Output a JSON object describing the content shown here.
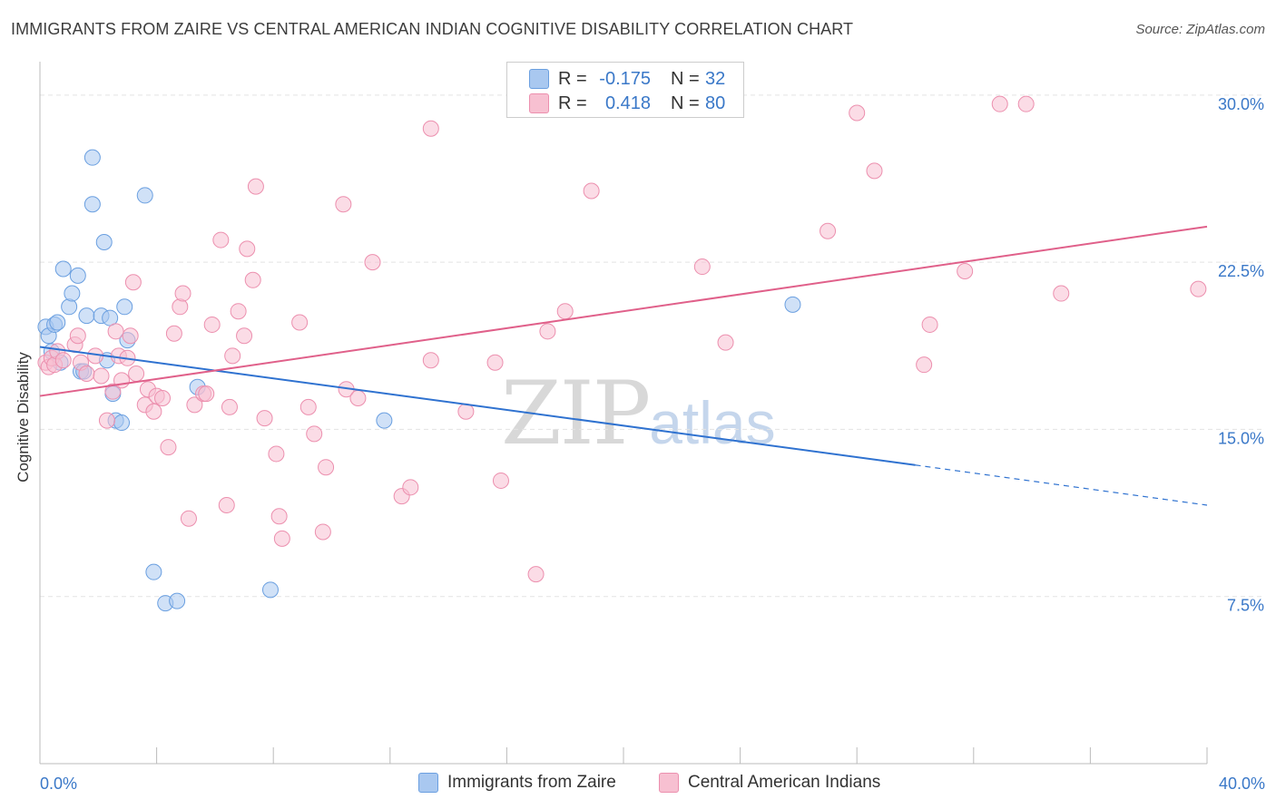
{
  "title": "IMMIGRANTS FROM ZAIRE VS CENTRAL AMERICAN INDIAN COGNITIVE DISABILITY CORRELATION CHART",
  "source": "Source: ZipAtlas.com",
  "watermark": {
    "zip": "ZIP",
    "atlas": "atlas"
  },
  "colors": {
    "blue_fill": "#a9c8f0",
    "blue_stroke": "#6a9fe0",
    "blue_line": "#2f72d0",
    "pink_fill": "#f7c0d1",
    "pink_stroke": "#ec8fae",
    "pink_line": "#e0608a",
    "tick_label": "#3a78c8",
    "grid": "#e3e3e3"
  },
  "legend": {
    "r_label": "R =",
    "n_label": "N =",
    "rows": [
      {
        "name": "Immigrants from Zaire",
        "r": "-0.175",
        "n": "32"
      },
      {
        "name": "Central American Indians",
        "r": "0.418",
        "n": "80"
      }
    ]
  },
  "chart_data": {
    "type": "scatter",
    "title": "IMMIGRANTS FROM ZAIRE VS CENTRAL AMERICAN INDIAN COGNITIVE DISABILITY CORRELATION CHART",
    "xlabel": "",
    "ylabel": "Cognitive Disability",
    "xlim": [
      0,
      40
    ],
    "ylim": [
      0,
      31.5
    ],
    "x_tick_labels": [
      "0.0%",
      "40.0%"
    ],
    "y_ticks": [
      7.5,
      15.0,
      22.5,
      30.0
    ],
    "y_tick_labels": [
      "7.5%",
      "15.0%",
      "22.5%",
      "30.0%"
    ],
    "grid": true,
    "series": [
      {
        "name": "Immigrants from Zaire",
        "color": "blue",
        "points": [
          [
            0.2,
            19.6
          ],
          [
            0.3,
            19.2
          ],
          [
            0.4,
            18.5
          ],
          [
            0.5,
            19.7
          ],
          [
            0.6,
            19.8
          ],
          [
            0.7,
            18.0
          ],
          [
            0.8,
            22.2
          ],
          [
            1.0,
            20.5
          ],
          [
            1.1,
            21.1
          ],
          [
            1.3,
            21.9
          ],
          [
            1.4,
            17.6
          ],
          [
            1.5,
            17.6
          ],
          [
            1.6,
            20.1
          ],
          [
            1.8,
            25.1
          ],
          [
            1.8,
            27.2
          ],
          [
            2.1,
            20.1
          ],
          [
            2.2,
            23.4
          ],
          [
            2.3,
            18.1
          ],
          [
            2.4,
            20.0
          ],
          [
            2.5,
            16.6
          ],
          [
            2.6,
            15.4
          ],
          [
            2.8,
            15.3
          ],
          [
            2.9,
            20.5
          ],
          [
            3.0,
            19.0
          ],
          [
            3.6,
            25.5
          ],
          [
            3.9,
            8.6
          ],
          [
            4.3,
            7.2
          ],
          [
            4.7,
            7.3
          ],
          [
            5.4,
            16.9
          ],
          [
            7.9,
            7.8
          ],
          [
            11.8,
            15.4
          ],
          [
            25.8,
            20.6
          ]
        ],
        "trend": {
          "x0": 0,
          "y0": 18.7,
          "x1": 30.0,
          "y1": 13.4,
          "dash_to_x": 40,
          "dash_to_y": 11.6
        }
      },
      {
        "name": "Central American Indians",
        "color": "pink",
        "points": [
          [
            0.2,
            18.0
          ],
          [
            0.3,
            17.8
          ],
          [
            0.4,
            18.2
          ],
          [
            0.5,
            17.9
          ],
          [
            0.6,
            18.5
          ],
          [
            0.8,
            18.1
          ],
          [
            1.2,
            18.8
          ],
          [
            1.3,
            19.2
          ],
          [
            1.4,
            18.0
          ],
          [
            1.6,
            17.5
          ],
          [
            1.9,
            18.3
          ],
          [
            2.1,
            17.4
          ],
          [
            2.3,
            15.4
          ],
          [
            2.5,
            16.7
          ],
          [
            2.6,
            19.4
          ],
          [
            2.7,
            18.3
          ],
          [
            2.8,
            17.2
          ],
          [
            3.0,
            18.2
          ],
          [
            3.1,
            19.2
          ],
          [
            3.2,
            21.6
          ],
          [
            3.3,
            17.5
          ],
          [
            3.6,
            16.1
          ],
          [
            3.7,
            16.8
          ],
          [
            3.9,
            15.8
          ],
          [
            4.0,
            16.5
          ],
          [
            4.2,
            16.4
          ],
          [
            4.4,
            14.2
          ],
          [
            4.6,
            19.3
          ],
          [
            4.8,
            20.5
          ],
          [
            4.9,
            21.1
          ],
          [
            5.1,
            11.0
          ],
          [
            5.3,
            16.1
          ],
          [
            5.6,
            16.6
          ],
          [
            5.7,
            16.6
          ],
          [
            5.9,
            19.7
          ],
          [
            6.2,
            23.5
          ],
          [
            6.4,
            11.6
          ],
          [
            6.5,
            16.0
          ],
          [
            6.6,
            18.3
          ],
          [
            6.8,
            20.3
          ],
          [
            7.0,
            19.2
          ],
          [
            7.1,
            23.1
          ],
          [
            7.3,
            21.7
          ],
          [
            7.4,
            25.9
          ],
          [
            7.7,
            15.5
          ],
          [
            8.1,
            13.9
          ],
          [
            8.2,
            11.1
          ],
          [
            8.3,
            10.1
          ],
          [
            8.9,
            19.8
          ],
          [
            9.2,
            16.0
          ],
          [
            9.4,
            14.8
          ],
          [
            9.7,
            10.4
          ],
          [
            9.8,
            13.3
          ],
          [
            10.4,
            25.1
          ],
          [
            10.5,
            16.8
          ],
          [
            10.9,
            16.4
          ],
          [
            11.4,
            22.5
          ],
          [
            12.4,
            12.0
          ],
          [
            12.7,
            12.4
          ],
          [
            13.4,
            28.5
          ],
          [
            13.4,
            18.1
          ],
          [
            14.6,
            15.8
          ],
          [
            15.6,
            18.0
          ],
          [
            15.8,
            12.7
          ],
          [
            17.0,
            8.5
          ],
          [
            17.4,
            19.4
          ],
          [
            18.0,
            20.3
          ],
          [
            18.9,
            25.7
          ],
          [
            22.7,
            22.3
          ],
          [
            23.5,
            18.9
          ],
          [
            27.0,
            23.9
          ],
          [
            28.0,
            29.2
          ],
          [
            28.6,
            26.6
          ],
          [
            30.3,
            17.9
          ],
          [
            30.5,
            19.7
          ],
          [
            31.7,
            22.1
          ],
          [
            32.9,
            29.6
          ],
          [
            33.8,
            29.6
          ],
          [
            35.0,
            21.1
          ],
          [
            39.7,
            21.3
          ]
        ],
        "trend": {
          "x0": 0,
          "y0": 16.5,
          "x1": 40,
          "y1": 24.1
        }
      }
    ]
  }
}
